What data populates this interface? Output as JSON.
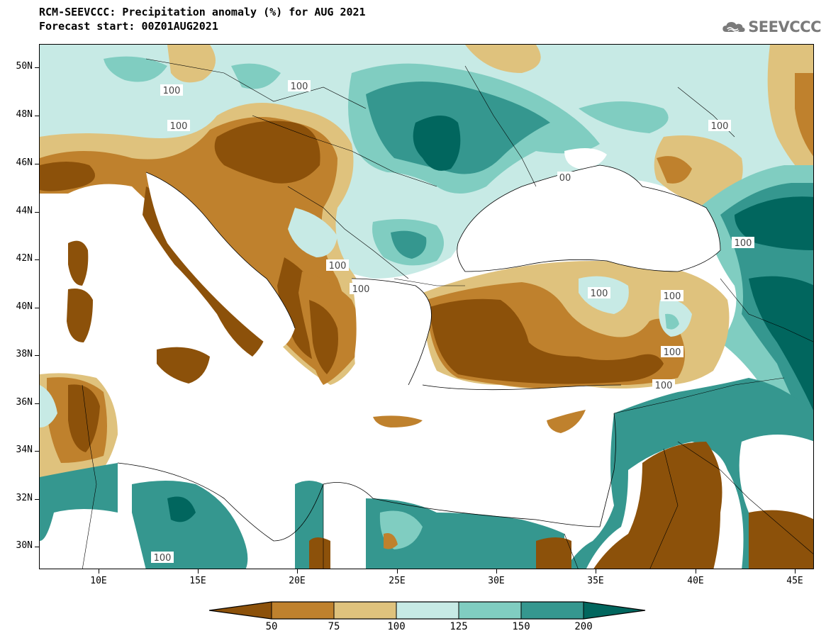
{
  "header": {
    "title_line1": "RCM-SEEVCCC: Precipitation anomaly (%) for AUG 2021",
    "title_line2": "Forecast start: 00Z01AUG2021"
  },
  "logo": {
    "text": "SEEVCCC",
    "icon": "cloud-icon"
  },
  "map": {
    "lat_labels": [
      "50N",
      "48N",
      "46N",
      "44N",
      "42N",
      "40N",
      "38N",
      "36N",
      "34N",
      "32N",
      "30N"
    ],
    "lon_labels": [
      "10E",
      "15E",
      "20E",
      "25E",
      "30E",
      "35E",
      "40E",
      "45E"
    ],
    "contour_labels": [
      "100",
      "100",
      "100",
      "100",
      "100",
      "100",
      "100",
      "100",
      "100",
      "100",
      "100",
      "00",
      "100"
    ],
    "colors": {
      "below_50": "#8c510a",
      "50_75": "#bf812d",
      "75_100": "#dfc27d",
      "100_125": "#c7eae5",
      "125_150": "#80cdc1",
      "150_200": "#35978f",
      "above_200": "#01665e",
      "sea": "#ffffff"
    }
  },
  "colorbar": {
    "labels": [
      "50",
      "75",
      "100",
      "125",
      "150",
      "200"
    ],
    "colors": [
      "#8c510a",
      "#bf812d",
      "#dfc27d",
      "#c7eae5",
      "#80cdc1",
      "#35978f",
      "#01665e"
    ]
  }
}
